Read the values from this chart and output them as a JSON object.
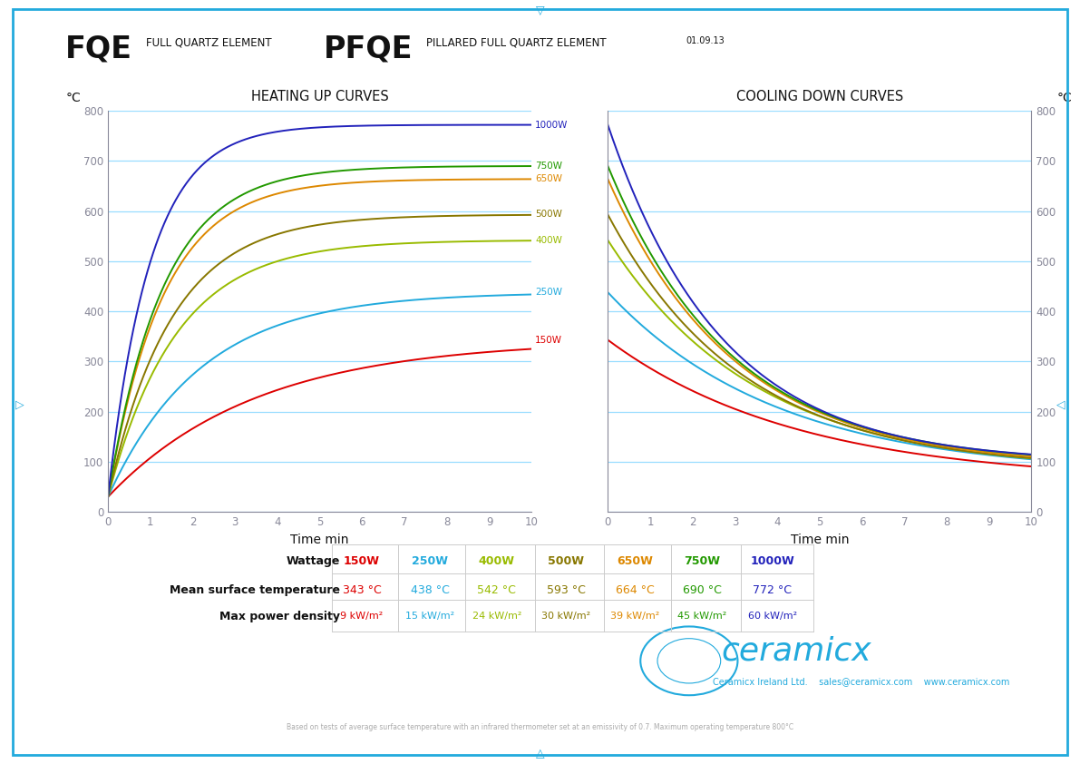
{
  "heating_title": "HEATING UP CURVES",
  "cooling_title": "COOLING DOWN CURVES",
  "xlabel": "Time min",
  "ylabel": "°C",
  "xlim": [
    0,
    10
  ],
  "ylim": [
    0,
    800
  ],
  "yticks": [
    0,
    100,
    200,
    300,
    400,
    500,
    600,
    700,
    800
  ],
  "xticks": [
    0,
    1,
    2,
    3,
    4,
    5,
    6,
    7,
    8,
    9,
    10
  ],
  "wattages": [
    "150W",
    "250W",
    "400W",
    "500W",
    "650W",
    "750W",
    "1000W"
  ],
  "steady_temps": [
    343,
    438,
    542,
    593,
    664,
    690,
    772
  ],
  "heat_taus": [
    3.5,
    2.2,
    1.6,
    1.5,
    1.3,
    1.3,
    1.0
  ],
  "cool_taus": [
    4.5,
    4.0,
    3.5,
    3.2,
    3.0,
    2.9,
    2.7
  ],
  "cool_end": [
    60,
    75,
    80,
    85,
    90,
    95,
    98
  ],
  "mean_temps": [
    "343 °C",
    "438 °C",
    "542 °C",
    "593 °C",
    "664 °C",
    "690 °C",
    "772 °C"
  ],
  "power_density": [
    "9 kW/m²",
    "15 kW/m²",
    "24 kW/m²",
    "30 kW/m²",
    "39 kW/m²",
    "45 kW/m²",
    "60 kW/m²"
  ],
  "colors": [
    "#dd0000",
    "#22aadd",
    "#99bb00",
    "#887700",
    "#dd8800",
    "#229900",
    "#2222bb"
  ],
  "background": "#ffffff",
  "border_color": "#22aadd",
  "grid_color": "#99ddff",
  "axis_color": "#888899",
  "title_color": "#111111"
}
